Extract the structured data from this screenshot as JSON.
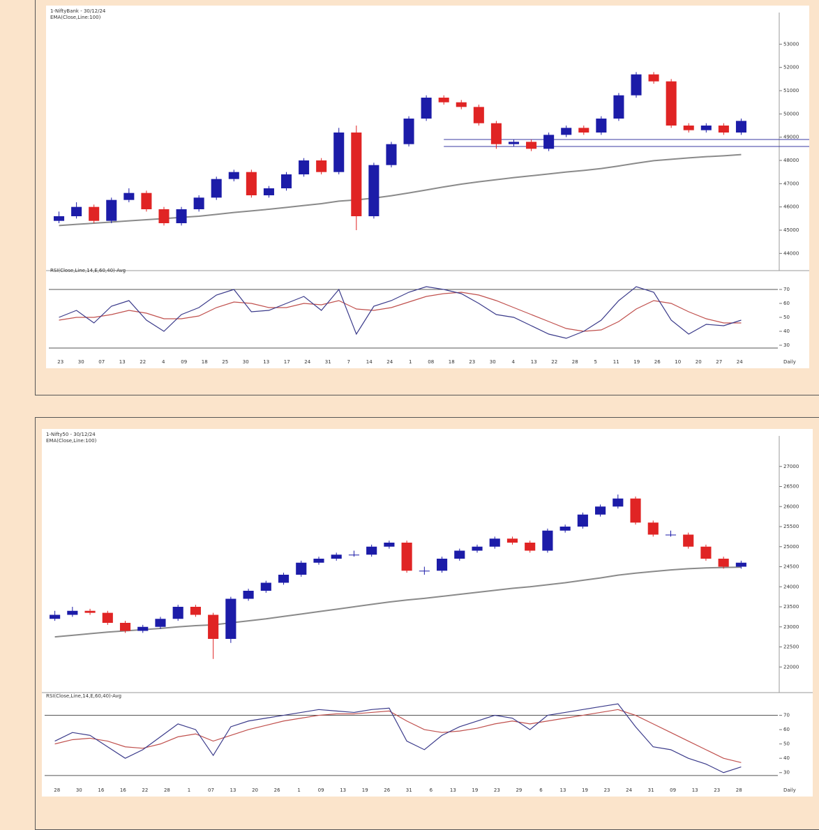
{
  "chart_data": [
    {
      "type": "candlestick",
      "title": "1-NiftyBank - 30/12/24",
      "subtitle": "EMA(Close,Line:100)",
      "open": [
        45400,
        45600,
        46000,
        45400,
        46300,
        46600,
        45900,
        45300,
        45900,
        46400,
        47200,
        47500,
        46500,
        46800,
        47400,
        48000,
        47500,
        49200,
        45600,
        47800,
        48700,
        49800,
        50700,
        50500,
        50300,
        49600,
        48700,
        48800,
        48500,
        49100,
        49400,
        49200,
        49800,
        50800,
        51700,
        51400,
        49500,
        49300,
        49500,
        49200
      ],
      "high": [
        45800,
        46200,
        46100,
        46400,
        46800,
        46700,
        46000,
        46000,
        46500,
        47300,
        47600,
        47600,
        46900,
        47500,
        48100,
        48100,
        49400,
        49500,
        47900,
        48800,
        49900,
        50800,
        50800,
        50600,
        50400,
        49700,
        48900,
        48900,
        49200,
        49500,
        49500,
        49900,
        50900,
        51800,
        51800,
        51500,
        49600,
        49600,
        49600,
        49800
      ],
      "low": [
        45300,
        45500,
        45300,
        45300,
        46200,
        45800,
        45200,
        45200,
        45800,
        46300,
        47100,
        46400,
        46400,
        46700,
        47300,
        47400,
        47400,
        45000,
        45500,
        47700,
        48600,
        49700,
        50400,
        50200,
        49500,
        48500,
        48600,
        48400,
        48400,
        49000,
        49100,
        49100,
        49700,
        50700,
        51300,
        49400,
        49200,
        49200,
        49100,
        49100
      ],
      "close": [
        45600,
        46000,
        45400,
        46300,
        46600,
        45900,
        45300,
        45900,
        46400,
        47200,
        47500,
        46500,
        46800,
        47400,
        48000,
        47500,
        49200,
        45600,
        47800,
        48700,
        49800,
        50700,
        50500,
        50300,
        49600,
        48700,
        48800,
        48500,
        49100,
        49400,
        49200,
        49800,
        50800,
        51700,
        51400,
        49500,
        49300,
        49500,
        49200,
        49700
      ],
      "ema": [
        45200,
        45250,
        45300,
        45350,
        45400,
        45450,
        45500,
        45550,
        45600,
        45680,
        45760,
        45830,
        45900,
        45980,
        46060,
        46140,
        46250,
        46300,
        46380,
        46480,
        46600,
        46730,
        46860,
        46980,
        47080,
        47170,
        47260,
        47340,
        47420,
        47500,
        47570,
        47650,
        47760,
        47880,
        47990,
        48050,
        48110,
        48160,
        48200,
        48250
      ],
      "up_color": "#1c1ca8",
      "down_color": "#e02424",
      "ema_color": "#8a8a8a",
      "support_levels": [
        48900,
        48600
      ],
      "support_color": "#3a3aa0",
      "ylim": [
        43500,
        54000
      ],
      "yticks": [
        44000,
        45000,
        46000,
        47000,
        48000,
        49000,
        50000,
        51000,
        52000,
        53000
      ],
      "xlabels": [
        "23",
        "30",
        "07",
        "13",
        "22",
        "4",
        "09",
        "18",
        "25",
        "30",
        "13",
        "17",
        "24",
        "31",
        "7",
        "14",
        "24",
        "1",
        "08",
        "18",
        "23",
        "30",
        "4",
        "13",
        "22",
        "28",
        "5",
        "11",
        "19",
        "26",
        "10",
        "20",
        "27",
        "24"
      ],
      "period": "Daily",
      "indicator": {
        "label": "RSI(Close,Line,14,E,60,40)-Avg",
        "ylim": [
          25,
          80
        ],
        "yticks": [
          30,
          40,
          50,
          60,
          70
        ],
        "levels": [
          70,
          28
        ],
        "rsi": [
          50,
          55,
          46,
          58,
          62,
          48,
          40,
          52,
          57,
          66,
          70,
          54,
          55,
          60,
          65,
          55,
          70,
          38,
          58,
          62,
          68,
          72,
          70,
          67,
          60,
          52,
          50,
          44,
          38,
          35,
          40,
          48,
          62,
          72,
          68,
          48,
          38,
          45,
          44,
          48
        ],
        "avg": [
          48,
          50,
          50,
          52,
          55,
          53,
          49,
          49,
          51,
          57,
          61,
          60,
          57,
          57,
          60,
          59,
          62,
          56,
          55,
          57,
          61,
          65,
          67,
          68,
          66,
          62,
          57,
          52,
          47,
          42,
          40,
          41,
          47,
          56,
          62,
          60,
          54,
          49,
          46,
          46
        ],
        "rsi_color": "#3a3a8a",
        "avg_color": "#c0504d"
      }
    },
    {
      "type": "candlestick",
      "title": "1-Nifty50 - 30/12/24",
      "subtitle": "EMA(Close,Line:100)",
      "open": [
        23200,
        23300,
        23400,
        23350,
        23100,
        22900,
        23000,
        23200,
        23500,
        23300,
        22700,
        23700,
        23900,
        24100,
        24300,
        24600,
        24700,
        24800,
        24800,
        25000,
        25100,
        24400,
        24400,
        24700,
        24900,
        25000,
        25200,
        25100,
        24900,
        25400,
        25500,
        25800,
        26000,
        26200,
        25600,
        25300,
        25300,
        25000,
        24700,
        24500
      ],
      "high": [
        23400,
        23500,
        23450,
        23400,
        23150,
        23050,
        23250,
        23550,
        23550,
        23350,
        23750,
        23950,
        24150,
        24350,
        24650,
        24750,
        24850,
        24900,
        25050,
        25150,
        25150,
        24500,
        24750,
        24950,
        25050,
        25250,
        25250,
        25150,
        25450,
        25550,
        25850,
        26050,
        26300,
        26250,
        25650,
        25400,
        25350,
        25050,
        24750,
        24650
      ],
      "low": [
        23150,
        23250,
        23300,
        23050,
        22850,
        22850,
        22950,
        23150,
        23250,
        22200,
        22600,
        23650,
        23850,
        24050,
        24250,
        24550,
        24650,
        24750,
        24750,
        24950,
        24350,
        24300,
        24350,
        24650,
        24850,
        24950,
        25050,
        24850,
        24850,
        25350,
        25450,
        25750,
        25950,
        25550,
        25250,
        25250,
        24950,
        24650,
        24450,
        24450
      ],
      "close": [
        23300,
        23400,
        23350,
        23100,
        22900,
        23000,
        23200,
        23500,
        23300,
        22700,
        23700,
        23900,
        24100,
        24300,
        24600,
        24700,
        24800,
        24800,
        25000,
        25100,
        24400,
        24400,
        24700,
        24900,
        25000,
        25200,
        25100,
        24900,
        25400,
        25500,
        25800,
        26000,
        26200,
        25600,
        25300,
        25300,
        25000,
        24700,
        24500,
        24600
      ],
      "ema": [
        22750,
        22790,
        22830,
        22870,
        22900,
        22930,
        22960,
        23000,
        23030,
        23050,
        23100,
        23150,
        23200,
        23260,
        23320,
        23380,
        23440,
        23500,
        23560,
        23620,
        23670,
        23710,
        23760,
        23810,
        23860,
        23910,
        23960,
        24000,
        24050,
        24100,
        24160,
        24220,
        24290,
        24340,
        24380,
        24420,
        24450,
        24470,
        24480,
        24490
      ],
      "up_color": "#1c1ca8",
      "down_color": "#e02424",
      "ema_color": "#8a8a8a",
      "ylim": [
        21500,
        27500
      ],
      "yticks": [
        22000,
        22500,
        23000,
        23500,
        24000,
        24500,
        25000,
        25500,
        26000,
        26500,
        27000
      ],
      "xlabels": [
        "28",
        "30",
        "16",
        "16",
        "22",
        "28",
        "1",
        "07",
        "13",
        "20",
        "26",
        "1",
        "09",
        "13",
        "19",
        "26",
        "31",
        "6",
        "13",
        "19",
        "23",
        "29",
        "6",
        "13",
        "19",
        "23",
        "24",
        "31",
        "09",
        "13",
        "23",
        "28"
      ],
      "period": "Daily",
      "indicator": {
        "label": "RSI(Close,Line,14,E,60,40)-Avg",
        "ylim": [
          25,
          80
        ],
        "yticks": [
          30,
          40,
          50,
          60,
          70
        ],
        "levels": [
          70,
          28
        ],
        "rsi": [
          52,
          58,
          56,
          48,
          40,
          46,
          55,
          64,
          60,
          42,
          62,
          66,
          68,
          70,
          72,
          74,
          73,
          72,
          74,
          75,
          52,
          46,
          56,
          62,
          66,
          70,
          68,
          60,
          70,
          72,
          74,
          76,
          78,
          62,
          48,
          46,
          40,
          36,
          30,
          34
        ],
        "avg": [
          50,
          53,
          54,
          52,
          48,
          47,
          50,
          55,
          57,
          52,
          56,
          60,
          63,
          66,
          68,
          70,
          71,
          71,
          72,
          73,
          66,
          60,
          58,
          59,
          61,
          64,
          66,
          64,
          66,
          68,
          70,
          72,
          74,
          70,
          64,
          58,
          52,
          46,
          40,
          37
        ],
        "rsi_color": "#3a3a8a",
        "avg_color": "#c0504d"
      }
    }
  ]
}
